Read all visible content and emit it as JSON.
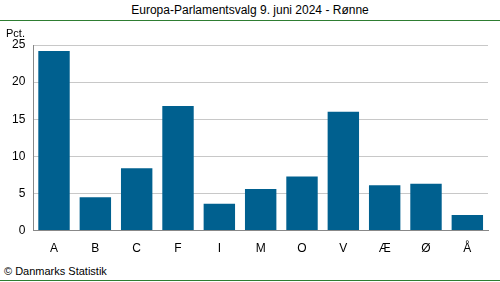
{
  "chart_data": {
    "type": "bar",
    "title": "Europa-Parlamentsvalg 9. juni 2024 - Rønne",
    "ylabel": "Pct.",
    "source": "© Danmarks Statistik",
    "categories": [
      "A",
      "B",
      "C",
      "F",
      "I",
      "M",
      "O",
      "V",
      "Æ",
      "Ø",
      "Å"
    ],
    "values": [
      24.2,
      4.5,
      8.4,
      16.8,
      3.6,
      5.6,
      7.3,
      16.0,
      6.1,
      6.3,
      2.1
    ],
    "color": "#00608f",
    "ylim": [
      0,
      25
    ],
    "yticks": [
      0,
      5,
      10,
      15,
      20,
      25
    ],
    "grid": true
  }
}
